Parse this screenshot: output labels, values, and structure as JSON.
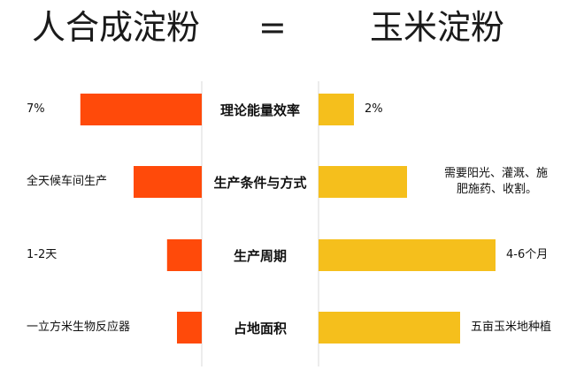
{
  "header": {
    "left_title": "人合成淀粉",
    "equals": "=",
    "right_title": "玉米淀粉"
  },
  "colors": {
    "left_bar": "#ff4a0a",
    "right_bar": "#f5bf1c",
    "axis": "#d9d9d9"
  },
  "chart_data": {
    "type": "bar",
    "orientation": "horizontal-back-to-back",
    "categories": [
      "理论能量效率",
      "生产条件与方式",
      "生产周期",
      "占地面积"
    ],
    "series": [
      {
        "name": "人合成淀粉",
        "values": [
          0.98,
          0.55,
          0.28,
          0.2
        ],
        "value_labels": [
          "7%",
          "全天候车间生产",
          "1-2天",
          "一立方米生物反应器"
        ]
      },
      {
        "name": "玉米淀粉",
        "values": [
          0.2,
          0.5,
          1.0,
          0.8
        ],
        "value_labels": [
          "2%",
          "需要阳光、灌溉、施\n肥施药、收割。",
          "4-6个月",
          "五亩玉米地种植"
        ]
      }
    ],
    "xlim": [
      0,
      1
    ],
    "grid": false,
    "legend": "none"
  }
}
